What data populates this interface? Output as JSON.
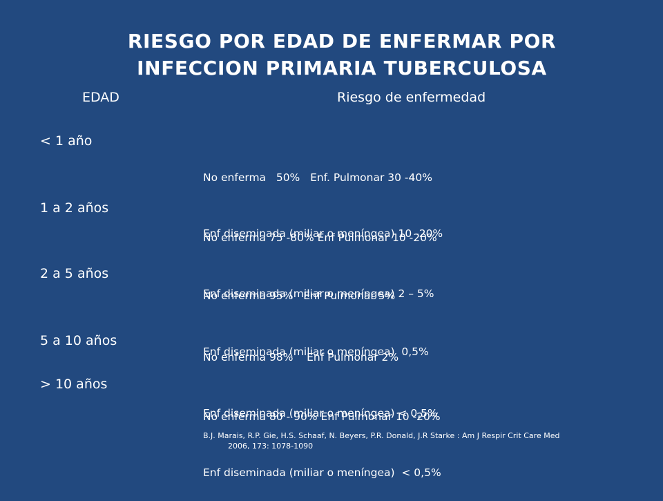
{
  "title": {
    "line1": "RIESGO POR EDAD DE ENFERMAR POR",
    "line2": "INFECCION PRIMARIA TUBERCULOSA"
  },
  "headers": {
    "age": "EDAD",
    "risk": "Riesgo de enfermedad"
  },
  "rows": [
    {
      "age": "< 1 año",
      "line1": "No enferma   50%   Enf. Pulmonar 30 -40%",
      "line2": "Enf diseminada (miliar o meníngea) 10 -20%"
    },
    {
      "age": "1 a 2 años",
      "line1": "No enferma 75 -80% Enf Pulmonar 10 -20%",
      "line2": "Enf diseminada (miliar o meníngea) 2 – 5%"
    },
    {
      "age": "2 a 5 años",
      "line1": "No enferma 95%   Enf Pulmonar 5%",
      "line2": "Enf diseminada (miliar o meníngea)  0,5%"
    },
    {
      "age": "5 a 10 años",
      "line1": "No enferma 98%    Enf Pulmonar 2%",
      "line2": "Enf diseminada (miliar o meníngea) < 0,5%"
    },
    {
      "age": "> 10 años",
      "line1": "No enferma 80 - 90% Enf Pulmonar 10 -20%",
      "line2": "Enf diseminada (miliar o meníngea)  < 0,5%"
    }
  ],
  "citation": {
    "line1": "B.J. Marais, R.P. Gie, H.S. Schaaf, N. Beyers, P.R. Donald, J.R Starke : Am J Respir Crit Care Med",
    "line2": "2006, 173: 1078-1090"
  }
}
